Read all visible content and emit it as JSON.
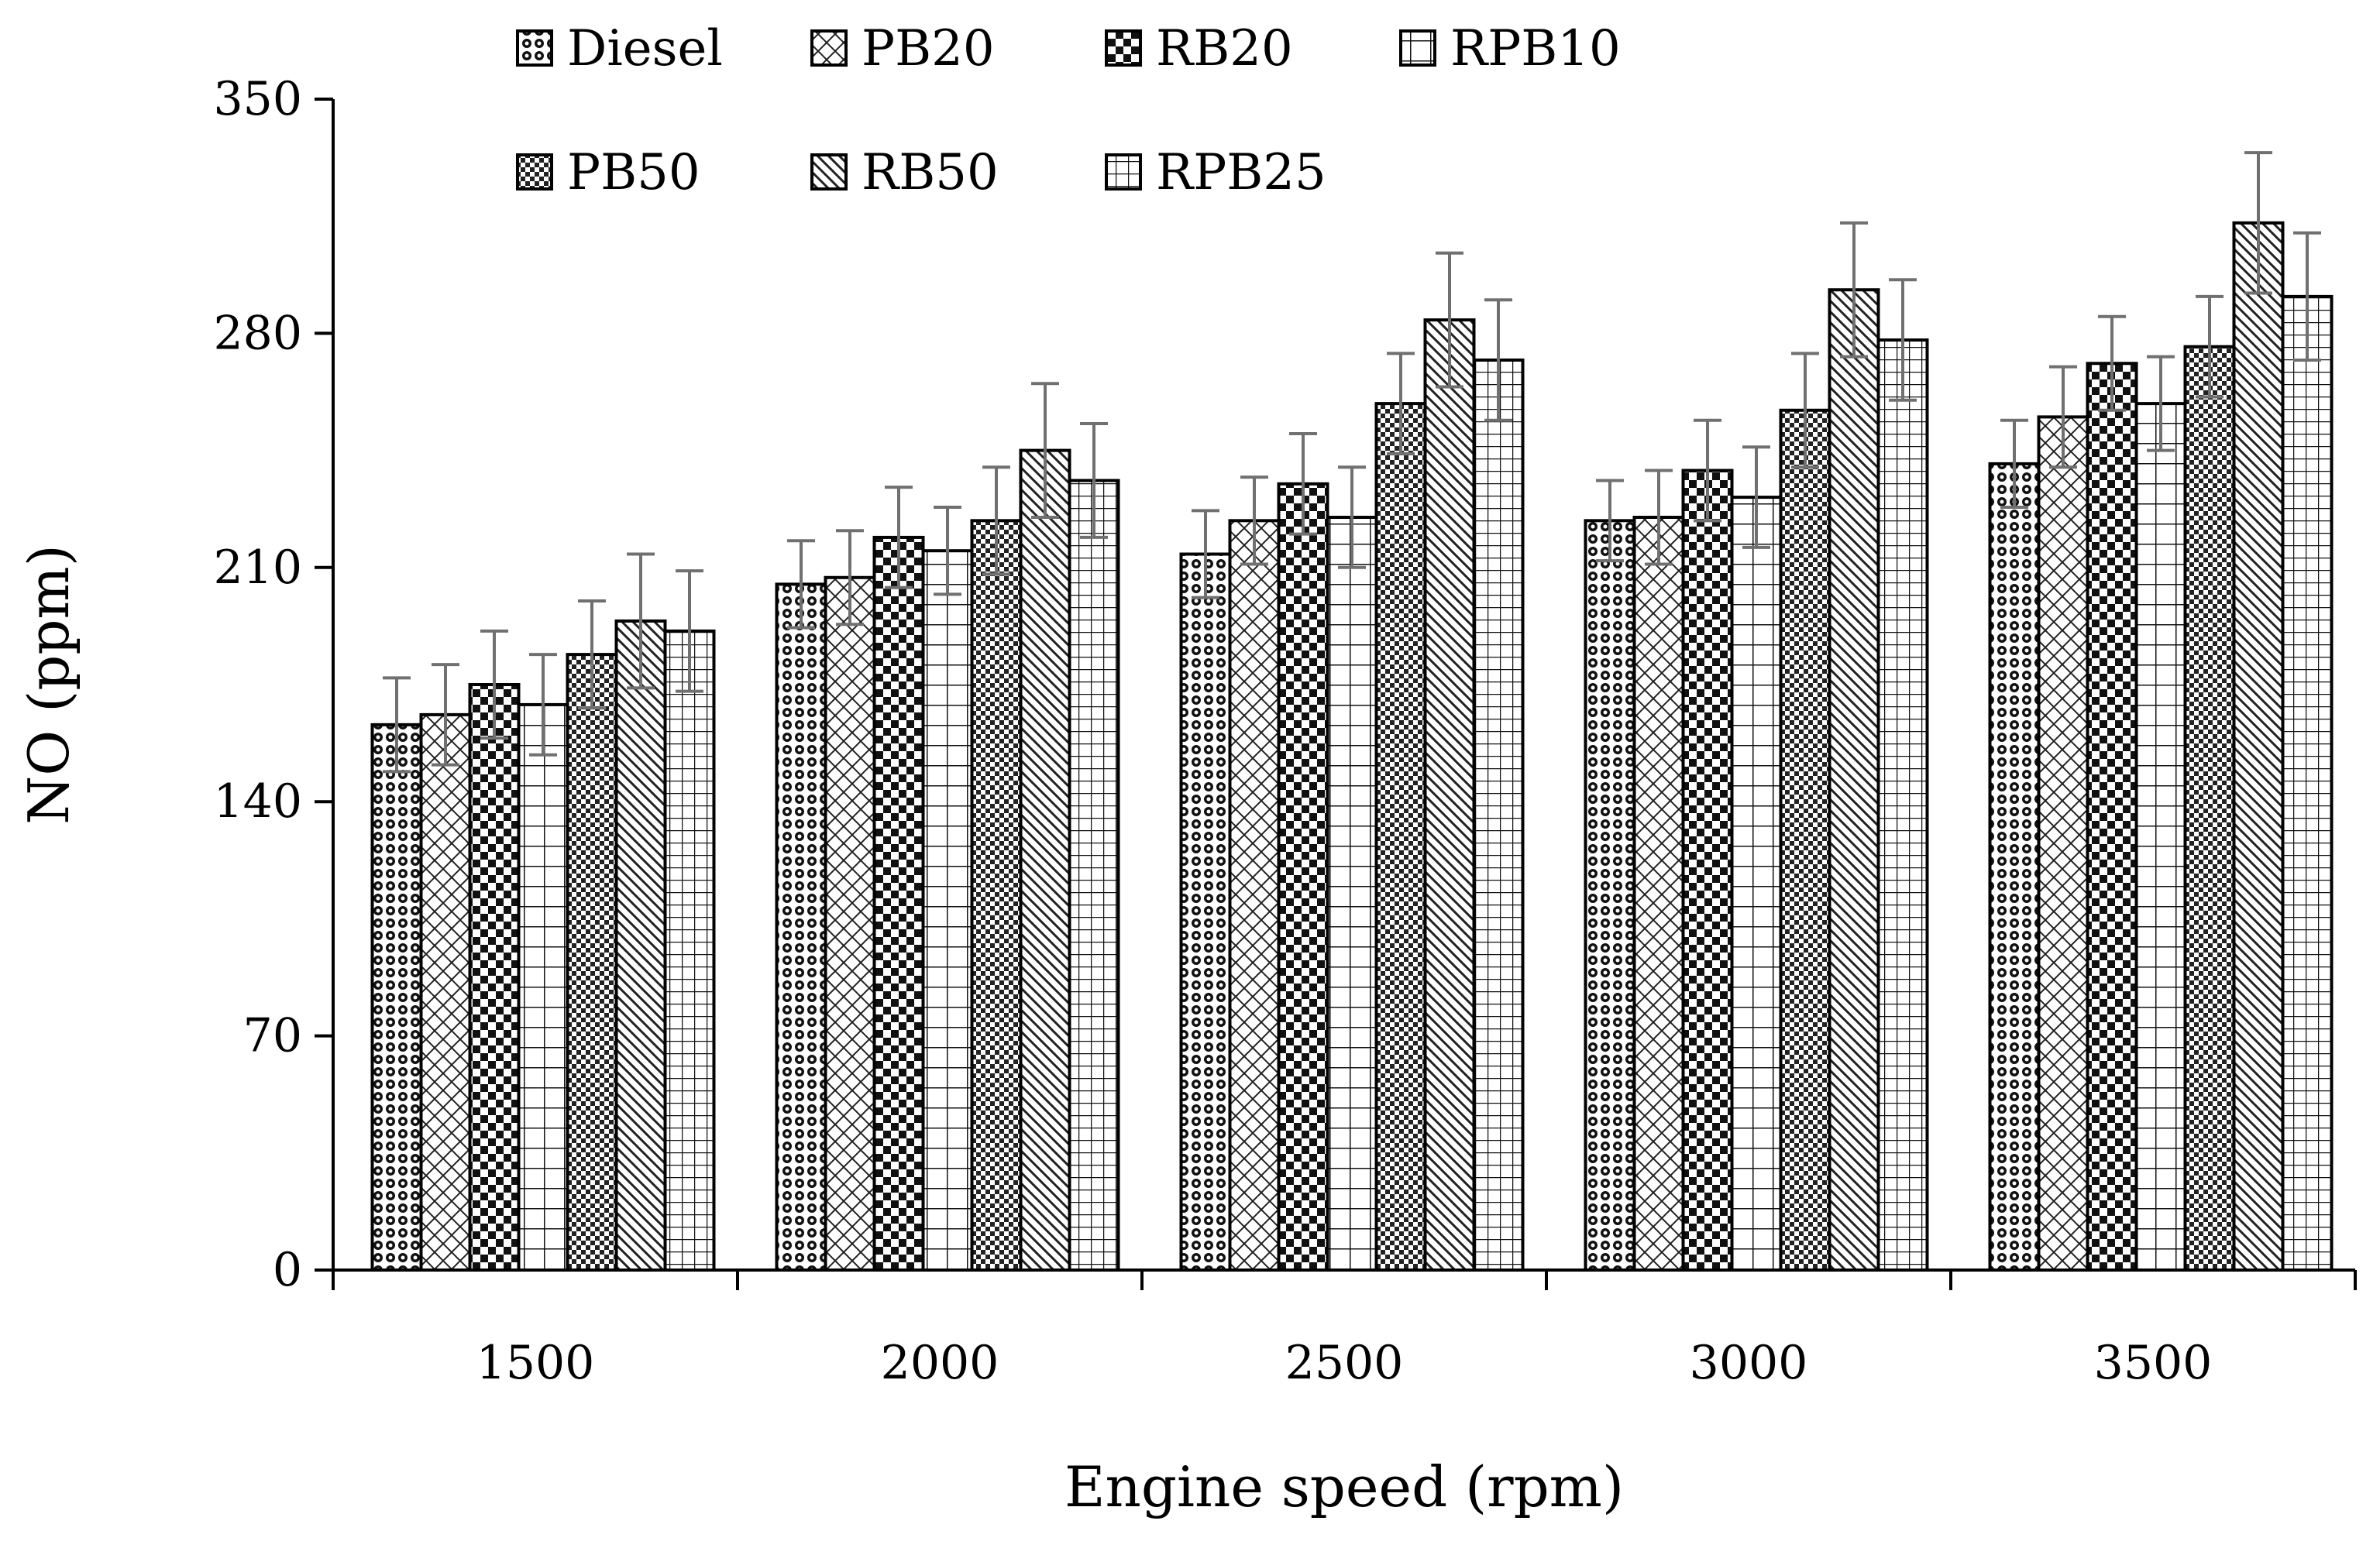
{
  "chart_data": {
    "type": "bar",
    "title": "",
    "xlabel": "Engine speed (rpm)",
    "ylabel": "NO (ppm)",
    "categories": [
      "1500",
      "2000",
      "2500",
      "3000",
      "3500"
    ],
    "ylim": [
      0,
      350
    ],
    "yticks": [
      "0",
      "70",
      "140",
      "210",
      "280",
      "350"
    ],
    "grid": false,
    "legend_position": "top",
    "error_bars": true,
    "series": [
      {
        "name": "Diesel",
        "pattern": "circles-dense",
        "values": [
          163,
          205,
          214,
          224,
          241
        ],
        "errors": [
          14,
          13,
          13,
          12,
          13
        ]
      },
      {
        "name": "PB20",
        "pattern": "crosshatch",
        "values": [
          166,
          207,
          224,
          225,
          255
        ],
        "errors": [
          15,
          14,
          13,
          14,
          15
        ]
      },
      {
        "name": "RB20",
        "pattern": "checker",
        "values": [
          175,
          219,
          235,
          239,
          271
        ],
        "errors": [
          16,
          15,
          15,
          15,
          14
        ]
      },
      {
        "name": "RPB10",
        "pattern": "grid-large",
        "values": [
          169,
          215,
          225,
          231,
          259
        ],
        "errors": [
          15,
          13,
          15,
          15,
          14
        ]
      },
      {
        "name": "PB50",
        "pattern": "checker-fine",
        "values": [
          184,
          224,
          259,
          257,
          276
        ],
        "errors": [
          16,
          16,
          15,
          17,
          15
        ]
      },
      {
        "name": "RB50",
        "pattern": "diagonal",
        "values": [
          194,
          245,
          284,
          293,
          313
        ],
        "errors": [
          20,
          20,
          20,
          20,
          21
        ]
      },
      {
        "name": "RPB25",
        "pattern": "grid-fine",
        "values": [
          191,
          236,
          272,
          278,
          291
        ],
        "errors": [
          18,
          17,
          18,
          18,
          19
        ]
      }
    ]
  }
}
